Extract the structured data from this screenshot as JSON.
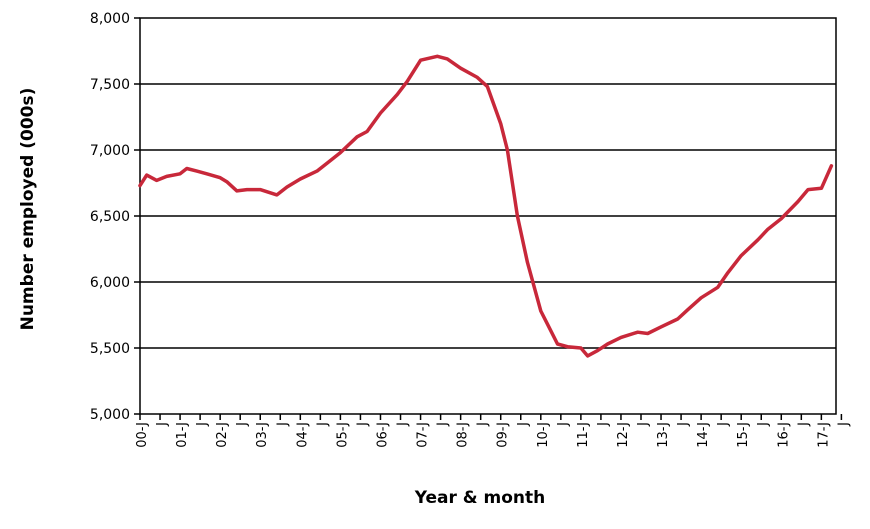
{
  "chart_data": {
    "type": "line",
    "title": "",
    "xlabel": "Year & month",
    "ylabel": "Number employed (000s)",
    "ylim": [
      5000,
      8000
    ],
    "yticks": [
      5000,
      5500,
      6000,
      6500,
      7000,
      7500,
      8000
    ],
    "ytick_labels": [
      "5,000",
      "5,500",
      "6,000",
      "6,500",
      "7,000",
      "7,500",
      "8,000"
    ],
    "xtick_labels": [
      "00-J",
      "J",
      "01-J",
      "J",
      "02-J",
      "J",
      "03-J",
      "J",
      "04-J",
      "J",
      "05-J",
      "J",
      "06-J",
      "J",
      "07-J",
      "J",
      "08-J",
      "J",
      "09-J",
      "J",
      "10-J",
      "J",
      "11-J",
      "J",
      "12-J",
      "J",
      "13-J",
      "J",
      "14-J",
      "J",
      "15-J",
      "J",
      "16-J",
      "J",
      "17-J",
      "J"
    ],
    "grid": true,
    "legend": "none",
    "line_color": "#c8283a",
    "series": [
      {
        "x": [
          "2000-01",
          "2000-03",
          "2000-06",
          "2000-09",
          "2001-01",
          "2001-03",
          "2001-06",
          "2001-09",
          "2002-01",
          "2002-03",
          "2002-06",
          "2002-09",
          "2003-01",
          "2003-06",
          "2003-09",
          "2004-01",
          "2004-06",
          "2004-09",
          "2005-01",
          "2005-06",
          "2005-09",
          "2006-01",
          "2006-06",
          "2006-09",
          "2007-01",
          "2007-06",
          "2007-09",
          "2008-01",
          "2008-06",
          "2008-09",
          "2009-01",
          "2009-03",
          "2009-06",
          "2009-09",
          "2010-01",
          "2010-03",
          "2010-06",
          "2010-09",
          "2011-01",
          "2011-03",
          "2011-06",
          "2011-09",
          "2012-01",
          "2012-06",
          "2012-09",
          "2013-01",
          "2013-06",
          "2013-09",
          "2014-01",
          "2014-06",
          "2014-09",
          "2015-01",
          "2015-06",
          "2015-09",
          "2016-01",
          "2016-06",
          "2016-09",
          "2017-01",
          "2017-04"
        ],
        "values": [
          6730,
          6810,
          6770,
          6800,
          6820,
          6860,
          6840,
          6820,
          6790,
          6760,
          6690,
          6700,
          6700,
          6660,
          6720,
          6780,
          6840,
          6900,
          6980,
          7100,
          7140,
          7280,
          7420,
          7520,
          7680,
          7710,
          7690,
          7620,
          7550,
          7480,
          7200,
          7000,
          6500,
          6150,
          5780,
          5680,
          5530,
          5510,
          5500,
          5440,
          5480,
          5530,
          5580,
          5620,
          5610,
          5660,
          5720,
          5790,
          5880,
          5960,
          6070,
          6200,
          6320,
          6400,
          6480,
          6610,
          6700,
          6710,
          6880
        ]
      }
    ]
  }
}
